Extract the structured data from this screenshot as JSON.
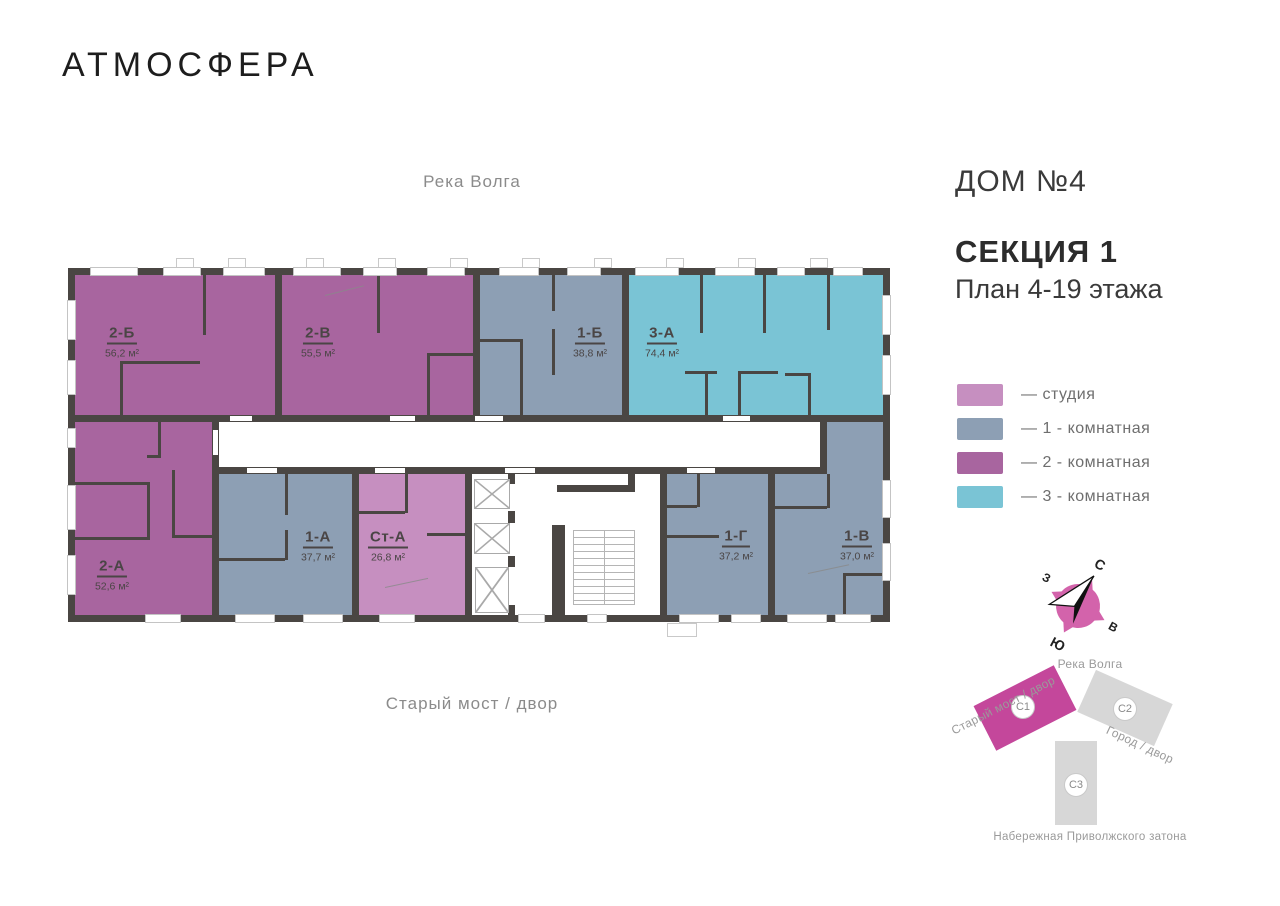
{
  "brand": {
    "logo": "АТМОСФЕРА"
  },
  "header": {
    "house": "ДОМ №4",
    "section": "СЕКЦИЯ 1",
    "plan": "План 4-19 этажа"
  },
  "plan": {
    "top_label": "Река Волга",
    "bottom_label": "Старый мост / двор",
    "apartments": [
      {
        "id": "apt-2b",
        "name": "2-Б",
        "area": "56,2 м²",
        "type": "two_room"
      },
      {
        "id": "apt-2v",
        "name": "2-В",
        "area": "55,5 м²",
        "type": "two_room"
      },
      {
        "id": "apt-1b",
        "name": "1-Б",
        "area": "38,8 м²",
        "type": "one_room"
      },
      {
        "id": "apt-3a",
        "name": "3-А",
        "area": "74,4 м²",
        "type": "three_room"
      },
      {
        "id": "apt-2a",
        "name": "2-А",
        "area": "52,6 м²",
        "type": "two_room"
      },
      {
        "id": "apt-1a",
        "name": "1-А",
        "area": "37,7 м²",
        "type": "one_room"
      },
      {
        "id": "apt-st-a",
        "name": "Ст-А",
        "area": "26,8 м²",
        "type": "studio"
      },
      {
        "id": "apt-1g",
        "name": "1-Г",
        "area": "37,2 м²",
        "type": "one_room"
      },
      {
        "id": "apt-1v",
        "name": "1-В",
        "area": "37,0 м²",
        "type": "one_room"
      }
    ]
  },
  "legend": {
    "items": [
      {
        "label": "— студия",
        "type": "studio"
      },
      {
        "label": "— 1 - комнатная",
        "type": "one_room"
      },
      {
        "label": "— 2 - комнатная",
        "type": "two_room"
      },
      {
        "label": "— 3 - комнатная",
        "type": "three_room"
      }
    ]
  },
  "colors": {
    "studio": "#c68fc0",
    "one_room": "#8d9fb4",
    "two_room": "#a8659f",
    "three_room": "#7ac4d5",
    "wall": "#4a4643",
    "map_highlight": "#c4479b",
    "map_neutral": "#d7d7d7",
    "compass": "#d363ab"
  },
  "compass": {
    "north": "С",
    "south": "Ю",
    "west": "З",
    "east": "В"
  },
  "minimap": {
    "top_label": "Река Волга",
    "bottom_label": "Набережная Приволжского затона",
    "left_label": "Старый мост / двор",
    "right_label": "Город / двор",
    "buildings": [
      {
        "id": "С1",
        "highlighted": true
      },
      {
        "id": "С2",
        "highlighted": false
      },
      {
        "id": "С3",
        "highlighted": false
      }
    ]
  }
}
